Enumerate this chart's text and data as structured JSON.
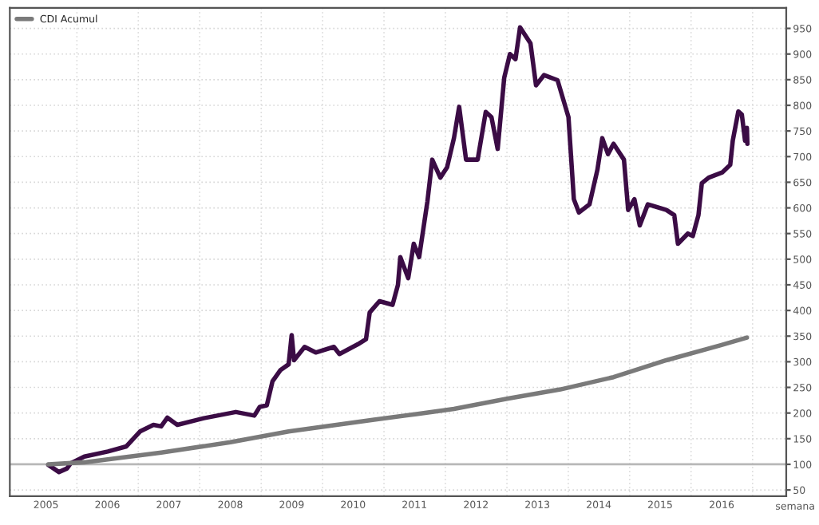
{
  "chart_data": {
    "type": "line",
    "xlabel": "semana",
    "x": [
      "2005-07-15",
      "2005-09-16",
      "2005-11-03",
      "2005-11-25",
      "2006-02-14",
      "2006-07-04",
      "2006-10-22",
      "2007-01-11",
      "2007-04-01",
      "2007-05-17",
      "2007-06-23",
      "2007-08-21",
      "2008-01-26",
      "2008-08-03",
      "2008-11-21",
      "2008-12-23",
      "2009-02-03",
      "2009-03-09",
      "2009-04-26",
      "2009-06-13",
      "2009-07-01",
      "2009-07-15",
      "2009-09-16",
      "2009-11-21",
      "2010-03-09",
      "2010-04-11",
      "2010-07-29",
      "2010-09-16",
      "2010-10-08",
      "2010-12-05",
      "2011-02-21",
      "2011-03-25",
      "2011-04-08",
      "2011-05-25",
      "2011-06-27",
      "2011-07-29",
      "2011-09-16",
      "2011-10-15",
      "2011-12-02",
      "2012-01-11",
      "2012-02-21",
      "2012-03-23",
      "2012-05-03",
      "2012-07-11",
      "2012-08-28",
      "2012-10-01",
      "2012-11-07",
      "2012-12-16",
      "2013-01-19",
      "2013-02-21",
      "2013-03-20",
      "2013-05-21",
      "2013-06-23",
      "2013-08-10",
      "2013-10-29",
      "2014-01-02",
      "2014-02-03",
      "2014-03-05",
      "2014-05-07",
      "2014-06-23",
      "2014-07-22",
      "2014-08-25",
      "2014-09-27",
      "2014-11-28",
      "2014-12-23",
      "2015-01-29",
      "2015-03-02",
      "2015-04-19",
      "2015-08-07",
      "2015-09-23",
      "2015-10-15",
      "2015-12-13",
      "2016-01-11",
      "2016-02-14",
      "2016-03-05",
      "2016-04-15",
      "2016-07-04",
      "2016-08-21",
      "2016-09-05",
      "2016-10-08",
      "2016-10-29",
      "2016-11-17",
      "2016-11-28",
      "2016-12-01"
    ],
    "series": [
      {
        "color": "#3b0c45",
        "values": [
          99,
          85,
          92,
          102,
          115,
          125,
          135,
          164,
          177,
          174,
          191,
          177,
          190,
          202,
          195,
          212,
          215,
          262,
          284,
          295,
          352,
          303,
          329,
          318,
          329,
          315,
          334,
          344,
          396,
          418,
          411,
          450,
          504,
          463,
          530,
          504,
          612,
          694,
          659,
          679,
          736,
          797,
          694,
          694,
          787,
          777,
          715,
          854,
          900,
          890,
          952,
          921,
          839,
          859,
          849,
          777,
          617,
          591,
          607,
          674,
          736,
          705,
          725,
          694,
          596,
          617,
          566,
          607,
          596,
          586,
          530,
          550,
          545,
          586,
          648,
          659,
          669,
          684,
          731,
          788,
          782,
          731,
          756,
          725
        ]
      },
      {
        "name": "CDI Acumul",
        "color": "#7a7a7a",
        "x": [
          "2005-07-15",
          "2006-02-14",
          "2007-05-17",
          "2008-07-01",
          "2009-06-13",
          "2010-11-03",
          "2011-07-13",
          "2012-02-21",
          "2013-01-01",
          "2013-11-15",
          "2014-09-27",
          "2015-08-07",
          "2016-06-22",
          "2016-11-28"
        ],
        "values": [
          100,
          104,
          123,
          143,
          164,
          187,
          198,
          208,
          228,
          246,
          270,
          303,
          332,
          347
        ]
      }
    ],
    "xlim": [
      "2004-11-28",
      "2017-07-20"
    ],
    "xticks": [
      {
        "value": "2006-01-01",
        "label": null
      },
      {
        "value": "2007-01-01",
        "label": null
      },
      {
        "value": "2008-01-01",
        "label": null
      },
      {
        "value": "2009-01-01",
        "label": null
      },
      {
        "value": "2010-01-01",
        "label": null
      },
      {
        "value": "2011-01-01",
        "label": null
      },
      {
        "value": "2012-01-01",
        "label": null
      },
      {
        "value": "2013-01-01",
        "label": null
      },
      {
        "value": "2014-01-01",
        "label": null
      },
      {
        "value": "2015-01-01",
        "label": null
      },
      {
        "value": "2016-01-01",
        "label": null
      },
      {
        "value": "2017-01-01",
        "label": null
      },
      {
        "value": "2005-07-01",
        "label": "2005"
      },
      {
        "value": "2006-07-01",
        "label": "2006"
      },
      {
        "value": "2007-07-01",
        "label": "2007"
      },
      {
        "value": "2008-07-01",
        "label": "2008"
      },
      {
        "value": "2009-07-01",
        "label": "2009"
      },
      {
        "value": "2010-07-01",
        "label": "2010"
      },
      {
        "value": "2011-07-01",
        "label": "2011"
      },
      {
        "value": "2012-07-01",
        "label": "2012"
      },
      {
        "value": "2013-07-01",
        "label": "2013"
      },
      {
        "value": "2014-07-01",
        "label": "2014"
      },
      {
        "value": "2015-07-01",
        "label": "2015"
      },
      {
        "value": "2016-07-01",
        "label": "2016"
      }
    ],
    "ylim": [
      38,
      990
    ],
    "yticks": [
      50,
      100,
      150,
      200,
      250,
      300,
      350,
      400,
      450,
      500,
      550,
      600,
      650,
      700,
      750,
      800,
      850,
      900,
      950
    ],
    "ref_lines": [
      {
        "axis": "y",
        "value": 100,
        "color": "#b8b8b8"
      }
    ],
    "grid": true,
    "legend": "top left",
    "line_style": "solid",
    "marker": "none"
  }
}
